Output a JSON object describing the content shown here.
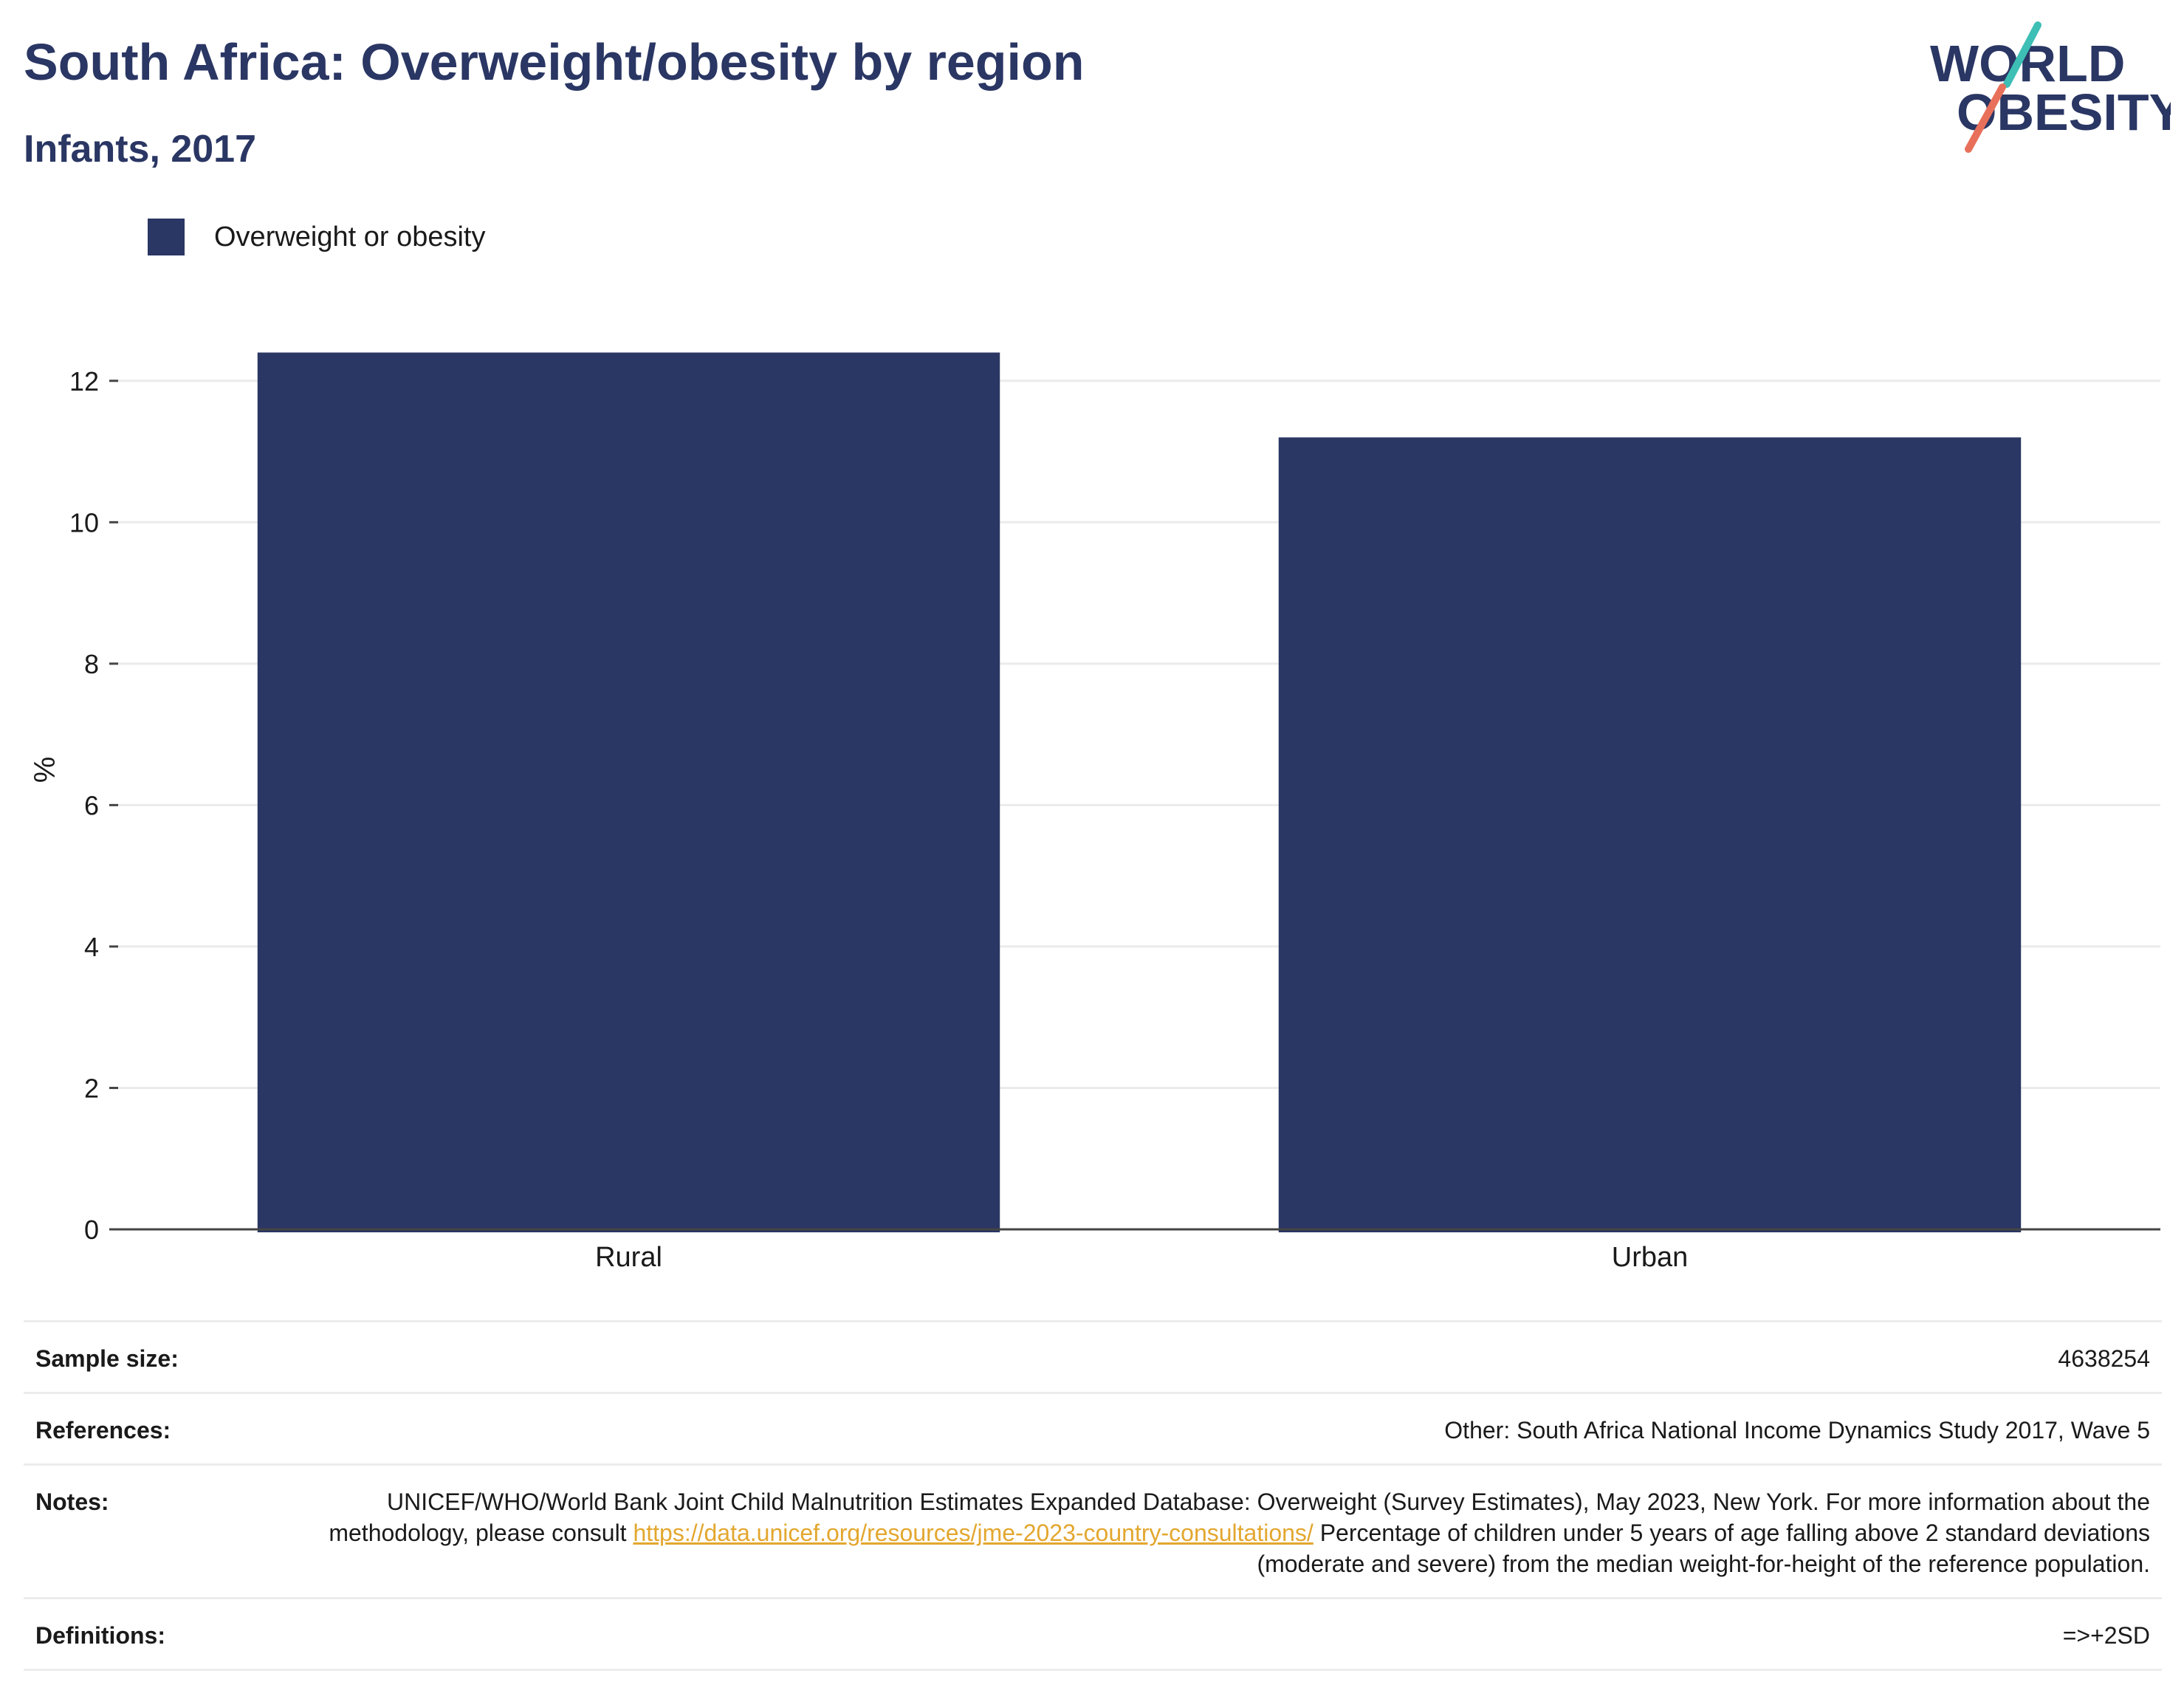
{
  "header": {
    "title": "South Africa: Overweight/obesity by region",
    "subtitle": "Infants, 2017"
  },
  "logo": {
    "line1": "WORLD",
    "line2": "OBESITY"
  },
  "colors": {
    "bar": "#2a3663",
    "title": "#2a3663",
    "link": "#e3a72f",
    "logo_teal": "#3dbfb5",
    "logo_coral": "#e8705a"
  },
  "chart_data": {
    "type": "bar",
    "categories": [
      "Rural",
      "Urban"
    ],
    "series": [
      {
        "name": "Overweight or obesity",
        "values": [
          12.4,
          11.2
        ]
      }
    ],
    "ylabel": "%",
    "xlabel": "",
    "ylim": [
      0,
      13
    ],
    "yticks": [
      0,
      2,
      4,
      6,
      8,
      10,
      12
    ],
    "grid": true,
    "legend": "top-left"
  },
  "info": {
    "sample_size_label": "Sample size:",
    "sample_size_value": "4638254",
    "references_label": "References:",
    "references_value": "Other: South Africa National Income Dynamics Study 2017, Wave 5",
    "notes_label": "Notes:",
    "notes_text_1": "UNICEF/WHO/World Bank Joint Child Malnutrition Estimates Expanded Database: Overweight (Survey Estimates), May 2023, New York. For more information about the methodology, please consult",
    "notes_link": "https://data.unicef.org/resources/jme-2023-country-consultations/",
    "notes_text_2": "Percentage of children under 5 years of age falling above 2 standard deviations (moderate and severe) from the median weight-for-height of the reference population.",
    "definitions_label": "Definitions:",
    "definitions_value": "=>+2SD"
  }
}
